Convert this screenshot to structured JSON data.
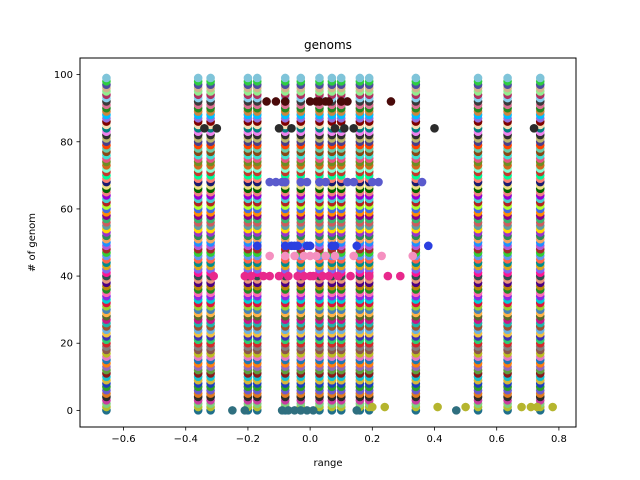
{
  "chart_data": {
    "type": "scatter",
    "title": "genoms",
    "xlabel": "range",
    "ylabel": "# of genom",
    "xlim": [
      -0.74,
      0.855
    ],
    "ylim": [
      -4.95,
      104.95
    ],
    "xticks": [
      -0.6,
      -0.4,
      -0.2,
      0.0,
      0.2,
      0.4,
      0.6,
      0.8
    ],
    "xtick_labels": [
      "−0.6",
      "−0.4",
      "−0.2",
      "0.0",
      "0.2",
      "0.4",
      "0.6",
      "0.8"
    ],
    "yticks": [
      0,
      20,
      40,
      60,
      80,
      100
    ],
    "ytick_labels": [
      "0",
      "20",
      "40",
      "60",
      "80",
      "100"
    ],
    "grid": false,
    "column_x": [
      -0.655,
      -0.36,
      -0.32,
      -0.2,
      -0.17,
      -0.08,
      -0.03,
      0.03,
      0.07,
      0.1,
      0.16,
      0.19,
      0.34,
      0.54,
      0.635,
      0.74
    ],
    "genome_rows": [
      0,
      1,
      2,
      3,
      4,
      5,
      6,
      7,
      8,
      9,
      10,
      11,
      12,
      13,
      14,
      15,
      16,
      17,
      18,
      19,
      20,
      21,
      22,
      23,
      24,
      25,
      26,
      27,
      28,
      29,
      30,
      31,
      32,
      33,
      34,
      35,
      36,
      37,
      38,
      39,
      40,
      41,
      42,
      43,
      44,
      45,
      46,
      47,
      48,
      49,
      50,
      51,
      52,
      53,
      54,
      55,
      56,
      57,
      58,
      59,
      60,
      61,
      62,
      63,
      64,
      65,
      66,
      67,
      68,
      69,
      70,
      71,
      72,
      73,
      74,
      75,
      76,
      77,
      78,
      79,
      80,
      81,
      82,
      83,
      84,
      85,
      86,
      87,
      88,
      89,
      90,
      91,
      92,
      93,
      94,
      95,
      96,
      97,
      98,
      99
    ],
    "row_colors": [
      "#1f6f8b",
      "#b5bd2e",
      "#7fd17f",
      "#c93ca0",
      "#2b2b2b",
      "#e07a1f",
      "#6a5acd",
      "#2ca02c",
      "#1c3fbf",
      "#d6b73a",
      "#17becf",
      "#8b1a1a",
      "#5e9e3e",
      "#9467bd",
      "#ff7f0e",
      "#1f77b4",
      "#e377c2",
      "#bcbd22",
      "#8c564b",
      "#7f7f7f",
      "#d62728",
      "#2ecc71",
      "#3f2fb0",
      "#f0c040",
      "#6ab0de",
      "#a0522d",
      "#20b2aa",
      "#c71585",
      "#556b2f",
      "#ffb347",
      "#4682b4",
      "#9acd32",
      "#dc143c",
      "#00ced1",
      "#8a2be2",
      "#ff69b4",
      "#228b22",
      "#b8860b",
      "#4b0082",
      "#e9967a",
      "#2f4f4f",
      "#ff1493",
      "#7b68ee",
      "#daa520",
      "#008b8b",
      "#ff6347",
      "#6495ed",
      "#32cd32",
      "#a52a2a",
      "#ba55d3",
      "#1e90ff",
      "#f4a460",
      "#2e8b57",
      "#9932cc",
      "#ffd700",
      "#5f9ea0",
      "#cd5c5c",
      "#3cb371",
      "#8b008b",
      "#ff8c00",
      "#4169e1",
      "#adff2f",
      "#b22222",
      "#48d1cc",
      "#9400d3",
      "#f08080",
      "#006400",
      "#eedd82",
      "#191970",
      "#fa8072",
      "#00fa9a",
      "#c0392b",
      "#7fffd4",
      "#d2691e",
      "#6b8e23",
      "#e75480",
      "#40e0d0",
      "#8b4513",
      "#66cdaa",
      "#ff4500",
      "#483d8b",
      "#bdb76b",
      "#2f2f2f",
      "#ee82ee",
      "#008080",
      "#f5deb3",
      "#800000",
      "#9370db",
      "#00bfff",
      "#cd853f",
      "#228b22",
      "#db7093",
      "#3a3a3a",
      "#87ceeb",
      "#b03060",
      "#90ee90",
      "#d2b48c",
      "#4d4d9f",
      "#2ecc40",
      "#7fc4d9"
    ],
    "series": [
      {
        "name": "",
        "color": "#2f6f7f",
        "points": [
          [
            -0.25,
            0
          ],
          [
            -0.21,
            0
          ],
          [
            -0.09,
            0
          ],
          [
            -0.07,
            0
          ],
          [
            -0.05,
            0
          ],
          [
            -0.03,
            0
          ],
          [
            -0.01,
            0
          ],
          [
            0.01,
            0
          ],
          [
            0.15,
            0
          ],
          [
            0.47,
            0
          ]
        ]
      },
      {
        "name": "",
        "color": "#b5b52e",
        "points": [
          [
            0.2,
            1
          ],
          [
            0.24,
            1
          ],
          [
            0.41,
            1
          ],
          [
            0.5,
            1
          ],
          [
            0.68,
            1
          ],
          [
            0.71,
            1
          ],
          [
            0.73,
            1
          ],
          [
            0.78,
            1
          ]
        ]
      },
      {
        "name": "",
        "color": "#e8288c",
        "points": [
          [
            -0.31,
            40
          ],
          [
            -0.21,
            40
          ],
          [
            -0.19,
            40
          ],
          [
            -0.15,
            40
          ],
          [
            -0.13,
            40
          ],
          [
            -0.1,
            40
          ],
          [
            -0.07,
            40
          ],
          [
            -0.04,
            40
          ],
          [
            -0.02,
            40
          ],
          [
            0.0,
            40
          ],
          [
            0.01,
            40
          ],
          [
            0.04,
            40
          ],
          [
            0.06,
            40
          ],
          [
            0.09,
            40
          ],
          [
            0.13,
            40
          ],
          [
            0.19,
            40
          ],
          [
            0.25,
            40
          ],
          [
            0.29,
            40
          ]
        ]
      },
      {
        "name": "",
        "color": "#f590c0",
        "points": [
          [
            -0.13,
            46
          ],
          [
            -0.08,
            46
          ],
          [
            -0.05,
            46
          ],
          [
            -0.02,
            46
          ],
          [
            0.0,
            46
          ],
          [
            0.02,
            46
          ],
          [
            0.05,
            46
          ],
          [
            0.08,
            46
          ],
          [
            0.14,
            46
          ],
          [
            0.23,
            46
          ],
          [
            0.33,
            46
          ]
        ]
      },
      {
        "name": "",
        "color": "#2a3fe0",
        "points": [
          [
            -0.17,
            49
          ],
          [
            -0.08,
            49
          ],
          [
            -0.06,
            49
          ],
          [
            -0.05,
            49
          ],
          [
            -0.04,
            49
          ],
          [
            -0.01,
            49
          ],
          [
            0.0,
            49
          ],
          [
            0.07,
            49
          ],
          [
            0.08,
            49
          ],
          [
            0.15,
            49
          ],
          [
            0.38,
            49
          ]
        ]
      },
      {
        "name": "",
        "color": "#5a5acd",
        "points": [
          [
            -0.13,
            68
          ],
          [
            -0.11,
            68
          ],
          [
            -0.09,
            68
          ],
          [
            -0.08,
            68
          ],
          [
            -0.03,
            68
          ],
          [
            -0.01,
            68
          ],
          [
            0.03,
            68
          ],
          [
            0.05,
            68
          ],
          [
            0.12,
            68
          ],
          [
            0.14,
            68
          ],
          [
            0.2,
            68
          ],
          [
            0.22,
            68
          ],
          [
            0.36,
            68
          ]
        ]
      },
      {
        "name": "",
        "color": "#2b2b2b",
        "points": [
          [
            -0.34,
            84
          ],
          [
            -0.3,
            84
          ],
          [
            -0.1,
            84
          ],
          [
            -0.06,
            84
          ],
          [
            0.08,
            84
          ],
          [
            0.11,
            84
          ],
          [
            0.14,
            84
          ],
          [
            0.4,
            84
          ],
          [
            0.72,
            84
          ]
        ]
      },
      {
        "name": "",
        "color": "#4a0a0a",
        "points": [
          [
            -0.14,
            92
          ],
          [
            -0.11,
            92
          ],
          [
            -0.08,
            92
          ],
          [
            0.0,
            92
          ],
          [
            0.02,
            92
          ],
          [
            0.03,
            92
          ],
          [
            0.05,
            92
          ],
          [
            0.06,
            92
          ],
          [
            0.1,
            92
          ],
          [
            0.12,
            92
          ],
          [
            0.26,
            92
          ]
        ]
      }
    ]
  }
}
